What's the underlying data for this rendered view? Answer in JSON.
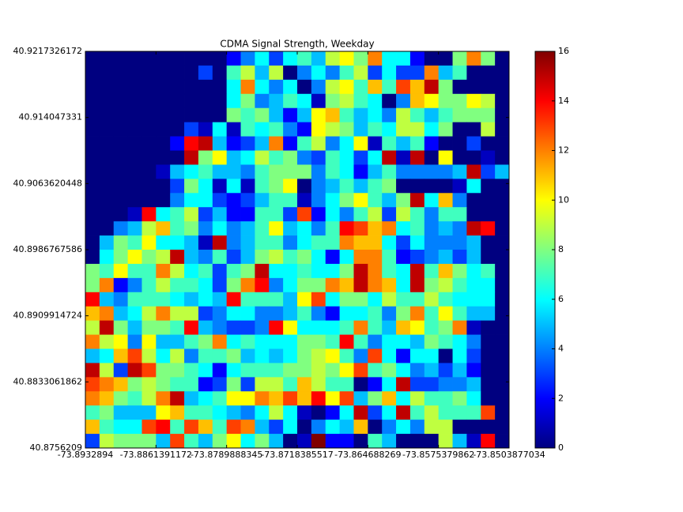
{
  "chart_data": {
    "type": "heatmap",
    "title": "CDMA Signal Strength, Weekday",
    "colormap": "jet",
    "xlim": [
      -73.8932894,
      -73.8503877034
    ],
    "xticks": [
      -73.8932894,
      -73.8861391172,
      -73.8789888345,
      -73.8718385517,
      -73.864688269,
      -73.8575379862,
      -73.8503877034
    ],
    "ylim": [
      40.8756209,
      40.9217326172
    ],
    "yticks": [
      40.8756209,
      40.8833061862,
      40.8909914724,
      40.8986767586,
      40.9063620448,
      40.914047331,
      40.9217326172
    ],
    "clim": [
      0,
      16
    ],
    "cticks": [
      0,
      2,
      4,
      6,
      8,
      10,
      12,
      14,
      16
    ],
    "z": [
      [
        0,
        0,
        0,
        0,
        0,
        0,
        0,
        0,
        0,
        0,
        2,
        4,
        6,
        3,
        6,
        7,
        5,
        9,
        10,
        8,
        12,
        6,
        6,
        2,
        0,
        0,
        8,
        12,
        8,
        0
      ],
      [
        0,
        0,
        0,
        0,
        0,
        0,
        0,
        0,
        3,
        0,
        7,
        9,
        5,
        9,
        0,
        4,
        6,
        4,
        7,
        9,
        3,
        6,
        3,
        3,
        12,
        5,
        7,
        0,
        0,
        0
      ],
      [
        0,
        0,
        0,
        0,
        0,
        0,
        0,
        0,
        0,
        0,
        6,
        12,
        6,
        4,
        6,
        0,
        4,
        9,
        10,
        7,
        11,
        7,
        13,
        11,
        15,
        8,
        0,
        0,
        0,
        0
      ],
      [
        0,
        0,
        0,
        0,
        0,
        0,
        0,
        0,
        0,
        0,
        6,
        8,
        4,
        5,
        7,
        6,
        1,
        8,
        9,
        7,
        6,
        0,
        4,
        11,
        10,
        8,
        8,
        10,
        9,
        0
      ],
      [
        0,
        0,
        0,
        0,
        0,
        0,
        0,
        0,
        0,
        0,
        8,
        7,
        8,
        5,
        2,
        5,
        10,
        11,
        7,
        5,
        6,
        4,
        9,
        7,
        5,
        7,
        8,
        8,
        8,
        0
      ],
      [
        0,
        0,
        0,
        0,
        0,
        0,
        0,
        3,
        1,
        6,
        1,
        7,
        6,
        7,
        4,
        2,
        10,
        9,
        8,
        5,
        7,
        6,
        9,
        9,
        6,
        8,
        0,
        0,
        9,
        0
      ],
      [
        0,
        0,
        0,
        0,
        0,
        0,
        2,
        14,
        15,
        5,
        2,
        3,
        5,
        12,
        2,
        7,
        9,
        4,
        6,
        10,
        1,
        7,
        5,
        7,
        2,
        0,
        0,
        3,
        0,
        0
      ],
      [
        0,
        0,
        0,
        0,
        0,
        0,
        0,
        15,
        8,
        10,
        5,
        6,
        9,
        7,
        8,
        4,
        3,
        7,
        6,
        3,
        6,
        15,
        1,
        15,
        0,
        10,
        0,
        0,
        1,
        0
      ],
      [
        0,
        0,
        0,
        0,
        0,
        1,
        5,
        6,
        7,
        5,
        5,
        4,
        7,
        8,
        8,
        8,
        4,
        7,
        6,
        2,
        5,
        7,
        4,
        4,
        4,
        4,
        5,
        15,
        3,
        5
      ],
      [
        0,
        0,
        0,
        0,
        0,
        0,
        3,
        8,
        6,
        1,
        6,
        1,
        7,
        8,
        10,
        0,
        4,
        5,
        7,
        5,
        7,
        8,
        0,
        0,
        0,
        0,
        1,
        6,
        0,
        0
      ],
      [
        0,
        0,
        0,
        0,
        0,
        0,
        4,
        6,
        6,
        3,
        2,
        3,
        5,
        7,
        7,
        1,
        4,
        6,
        8,
        10,
        7,
        5,
        8,
        15,
        6,
        11,
        4,
        0,
        0,
        0
      ],
      [
        0,
        0,
        0,
        1,
        14,
        6,
        7,
        9,
        3,
        5,
        2,
        2,
        7,
        7,
        3,
        13,
        2,
        6,
        4,
        7,
        9,
        3,
        9,
        7,
        4,
        7,
        7,
        0,
        0,
        0
      ],
      [
        0,
        0,
        4,
        5,
        9,
        11,
        7,
        8,
        4,
        6,
        4,
        5,
        7,
        10,
        5,
        6,
        4,
        7,
        14,
        13,
        11,
        12,
        6,
        7,
        4,
        5,
        4,
        15,
        14,
        0
      ],
      [
        0,
        5,
        8,
        7,
        10,
        6,
        6,
        5,
        1,
        15,
        4,
        5,
        7,
        7,
        4,
        6,
        7,
        7,
        12,
        11,
        11,
        6,
        3,
        6,
        4,
        4,
        4,
        5,
        0,
        0
      ],
      [
        0,
        6,
        8,
        10,
        8,
        9,
        15,
        5,
        4,
        7,
        3,
        5,
        8,
        9,
        7,
        8,
        6,
        2,
        6,
        12,
        12,
        7,
        2,
        3,
        4,
        5,
        3,
        5,
        0,
        0
      ],
      [
        8,
        7,
        10,
        7,
        7,
        12,
        9,
        6,
        7,
        3,
        7,
        8,
        15,
        6,
        6,
        7,
        6,
        6,
        8,
        15,
        12,
        7,
        6,
        15,
        7,
        11,
        8,
        6,
        7,
        0
      ],
      [
        8,
        12,
        2,
        4,
        7,
        9,
        7,
        7,
        6,
        3,
        8,
        12,
        14,
        4,
        6,
        8,
        8,
        12,
        11,
        15,
        12,
        11,
        6,
        15,
        8,
        9,
        7,
        6,
        6,
        0
      ],
      [
        14,
        5,
        4,
        7,
        7,
        7,
        6,
        5,
        6,
        5,
        14,
        7,
        7,
        7,
        5,
        10,
        13,
        6,
        8,
        8,
        6,
        9,
        7,
        7,
        9,
        7,
        6,
        6,
        6,
        0
      ],
      [
        11,
        12,
        5,
        6,
        9,
        12,
        9,
        9,
        3,
        4,
        6,
        6,
        4,
        4,
        5,
        7,
        4,
        2,
        6,
        6,
        7,
        4,
        8,
        12,
        7,
        10,
        7,
        5,
        5,
        0
      ],
      [
        9,
        15,
        8,
        5,
        8,
        8,
        7,
        14,
        5,
        4,
        3,
        3,
        4,
        14,
        10,
        6,
        6,
        6,
        7,
        12,
        7,
        5,
        11,
        10,
        7,
        8,
        12,
        1,
        0,
        0
      ],
      [
        12,
        9,
        10,
        4,
        10,
        5,
        5,
        7,
        8,
        12,
        6,
        7,
        6,
        6,
        6,
        8,
        8,
        7,
        14,
        7,
        4,
        6,
        6,
        5,
        8,
        7,
        6,
        4,
        0,
        0
      ],
      [
        5,
        6,
        11,
        13,
        9,
        6,
        9,
        4,
        7,
        7,
        8,
        5,
        6,
        5,
        6,
        8,
        9,
        10,
        7,
        4,
        13,
        6,
        2,
        6,
        6,
        0,
        6,
        3,
        0,
        0
      ],
      [
        15,
        9,
        3,
        15,
        13,
        8,
        8,
        7,
        6,
        2,
        6,
        7,
        7,
        7,
        8,
        8,
        9,
        8,
        10,
        13,
        7,
        8,
        6,
        4,
        5,
        3,
        5,
        2,
        0,
        0
      ],
      [
        13,
        12,
        11,
        8,
        9,
        8,
        7,
        7,
        2,
        3,
        8,
        3,
        9,
        9,
        7,
        11,
        9,
        7,
        7,
        0,
        2,
        6,
        15,
        3,
        3,
        4,
        4,
        5,
        0,
        0
      ],
      [
        12,
        11,
        8,
        7,
        9,
        12,
        15,
        5,
        6,
        7,
        10,
        10,
        12,
        11,
        13,
        11,
        14,
        10,
        13,
        5,
        8,
        11,
        6,
        9,
        7,
        7,
        8,
        6,
        0,
        0
      ],
      [
        7,
        8,
        5,
        5,
        5,
        10,
        11,
        7,
        7,
        6,
        5,
        4,
        6,
        9,
        6,
        1,
        0,
        2,
        6,
        15,
        3,
        6,
        15,
        7,
        9,
        7,
        7,
        7,
        13,
        0
      ],
      [
        11,
        7,
        6,
        6,
        13,
        14,
        7,
        13,
        11,
        7,
        13,
        12,
        5,
        3,
        6,
        0,
        4,
        6,
        5,
        11,
        0,
        4,
        6,
        4,
        9,
        9,
        0,
        0,
        0,
        0
      ],
      [
        3,
        9,
        8,
        8,
        8,
        5,
        13,
        7,
        5,
        8,
        10,
        6,
        8,
        5,
        0,
        1,
        16,
        2,
        2,
        0,
        7,
        5,
        0,
        0,
        0,
        9,
        5,
        1,
        14,
        0
      ]
    ]
  }
}
